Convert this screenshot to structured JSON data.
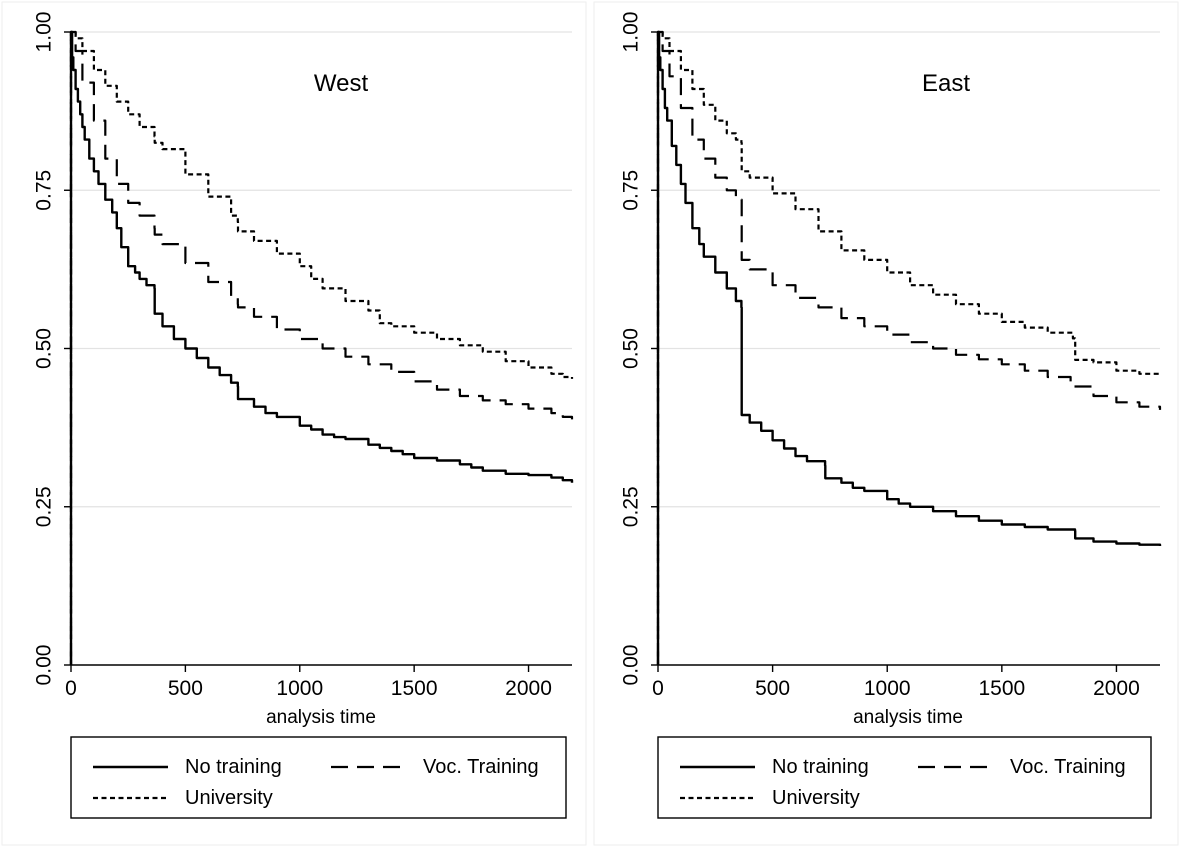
{
  "chart_data": [
    {
      "type": "line",
      "title": "West",
      "xlabel": "analysis time",
      "ylabel": "",
      "xlim": [
        0,
        2190
      ],
      "ylim": [
        0,
        1
      ],
      "xticks": [
        "0",
        "500",
        "1000",
        "1500",
        "2000"
      ],
      "yticks": [
        "0.00",
        "0.25",
        "0.50",
        "0.75",
        "1.00"
      ],
      "grid": true,
      "legend_position": "bottom",
      "series": [
        {
          "name": "No training",
          "dash": "solid",
          "x": [
            0,
            5,
            10,
            20,
            30,
            40,
            50,
            60,
            80,
            100,
            120,
            150,
            180,
            200,
            220,
            250,
            280,
            300,
            330,
            365,
            366,
            400,
            450,
            500,
            550,
            600,
            650,
            700,
            729,
            730,
            800,
            850,
            900,
            1000,
            1050,
            1100,
            1150,
            1200,
            1300,
            1350,
            1400,
            1450,
            1500,
            1600,
            1700,
            1750,
            1800,
            1900,
            2000,
            2100,
            2150,
            2190
          ],
          "y": [
            1.0,
            0.96,
            0.94,
            0.91,
            0.89,
            0.87,
            0.85,
            0.83,
            0.8,
            0.78,
            0.76,
            0.735,
            0.715,
            0.69,
            0.66,
            0.63,
            0.62,
            0.61,
            0.6,
            0.595,
            0.555,
            0.535,
            0.515,
            0.5,
            0.485,
            0.47,
            0.458,
            0.446,
            0.44,
            0.42,
            0.408,
            0.398,
            0.392,
            0.378,
            0.372,
            0.364,
            0.36,
            0.357,
            0.348,
            0.343,
            0.338,
            0.333,
            0.327,
            0.323,
            0.317,
            0.312,
            0.307,
            0.302,
            0.3,
            0.296,
            0.292,
            0.288
          ]
        },
        {
          "name": "Voc. Training",
          "dash": "long-dash",
          "x": [
            0,
            20,
            50,
            100,
            150,
            200,
            250,
            300,
            365,
            366,
            400,
            500,
            600,
            700,
            729,
            730,
            800,
            900,
            1000,
            1100,
            1200,
            1300,
            1400,
            1500,
            1600,
            1700,
            1800,
            1900,
            2000,
            2100,
            2150,
            2190
          ],
          "y": [
            1.0,
            0.97,
            0.92,
            0.86,
            0.8,
            0.76,
            0.73,
            0.71,
            0.69,
            0.68,
            0.665,
            0.635,
            0.605,
            0.58,
            0.57,
            0.565,
            0.55,
            0.53,
            0.515,
            0.5,
            0.487,
            0.475,
            0.463,
            0.448,
            0.435,
            0.425,
            0.418,
            0.412,
            0.405,
            0.398,
            0.392,
            0.388
          ]
        },
        {
          "name": "University",
          "dash": "short-dash",
          "x": [
            0,
            20,
            50,
            100,
            150,
            200,
            250,
            300,
            365,
            366,
            400,
            500,
            600,
            700,
            729,
            730,
            800,
            900,
            1000,
            1050,
            1100,
            1200,
            1300,
            1349,
            1350,
            1400,
            1500,
            1600,
            1700,
            1800,
            1900,
            2000,
            2100,
            2150,
            2190
          ],
          "y": [
            1.0,
            0.99,
            0.97,
            0.94,
            0.915,
            0.89,
            0.87,
            0.85,
            0.835,
            0.825,
            0.815,
            0.775,
            0.74,
            0.71,
            0.7,
            0.685,
            0.67,
            0.65,
            0.63,
            0.61,
            0.595,
            0.575,
            0.56,
            0.555,
            0.54,
            0.535,
            0.525,
            0.515,
            0.505,
            0.495,
            0.48,
            0.47,
            0.46,
            0.455,
            0.452
          ]
        }
      ]
    },
    {
      "type": "line",
      "title": "East",
      "xlabel": "analysis time",
      "ylabel": "",
      "xlim": [
        0,
        2190
      ],
      "ylim": [
        0,
        1
      ],
      "xticks": [
        "0",
        "500",
        "1000",
        "1500",
        "2000"
      ],
      "yticks": [
        "0.00",
        "0.25",
        "0.50",
        "0.75",
        "1.00"
      ],
      "grid": true,
      "legend_position": "bottom",
      "series": [
        {
          "name": "No training",
          "dash": "solid",
          "x": [
            0,
            5,
            10,
            20,
            30,
            40,
            60,
            80,
            100,
            120,
            150,
            180,
            200,
            250,
            300,
            340,
            364,
            365,
            400,
            450,
            500,
            550,
            600,
            650,
            729,
            730,
            800,
            850,
            900,
            1000,
            1050,
            1100,
            1200,
            1300,
            1400,
            1500,
            1600,
            1700,
            1819,
            1820,
            1900,
            2000,
            2100,
            2190
          ],
          "y": [
            1.0,
            0.96,
            0.94,
            0.91,
            0.88,
            0.86,
            0.82,
            0.79,
            0.76,
            0.73,
            0.69,
            0.665,
            0.645,
            0.62,
            0.595,
            0.575,
            0.565,
            0.395,
            0.383,
            0.37,
            0.355,
            0.342,
            0.33,
            0.322,
            0.315,
            0.295,
            0.288,
            0.28,
            0.275,
            0.262,
            0.255,
            0.25,
            0.243,
            0.235,
            0.228,
            0.222,
            0.218,
            0.214,
            0.212,
            0.2,
            0.195,
            0.192,
            0.19,
            0.188
          ]
        },
        {
          "name": "Voc. Training",
          "dash": "long-dash",
          "x": [
            0,
            20,
            50,
            100,
            150,
            200,
            250,
            300,
            340,
            364,
            365,
            400,
            500,
            600,
            700,
            800,
            900,
            1000,
            1100,
            1200,
            1300,
            1400,
            1500,
            1600,
            1700,
            1800,
            1900,
            2000,
            2100,
            2190
          ],
          "y": [
            1.0,
            0.97,
            0.93,
            0.88,
            0.83,
            0.8,
            0.77,
            0.75,
            0.74,
            0.735,
            0.64,
            0.625,
            0.6,
            0.58,
            0.565,
            0.548,
            0.535,
            0.522,
            0.51,
            0.5,
            0.49,
            0.483,
            0.475,
            0.465,
            0.455,
            0.44,
            0.425,
            0.415,
            0.408,
            0.403
          ]
        },
        {
          "name": "University",
          "dash": "short-dash",
          "x": [
            0,
            20,
            50,
            100,
            150,
            200,
            250,
            300,
            340,
            364,
            365,
            400,
            500,
            600,
            700,
            800,
            900,
            1000,
            1100,
            1200,
            1300,
            1400,
            1500,
            1600,
            1700,
            1810,
            1819,
            1820,
            1900,
            2000,
            2100,
            2190
          ],
          "y": [
            1.0,
            0.99,
            0.97,
            0.94,
            0.91,
            0.885,
            0.86,
            0.84,
            0.83,
            0.825,
            0.78,
            0.77,
            0.745,
            0.72,
            0.685,
            0.655,
            0.64,
            0.62,
            0.6,
            0.585,
            0.57,
            0.555,
            0.542,
            0.533,
            0.525,
            0.516,
            0.512,
            0.482,
            0.478,
            0.465,
            0.46,
            0.458
          ]
        }
      ]
    }
  ]
}
